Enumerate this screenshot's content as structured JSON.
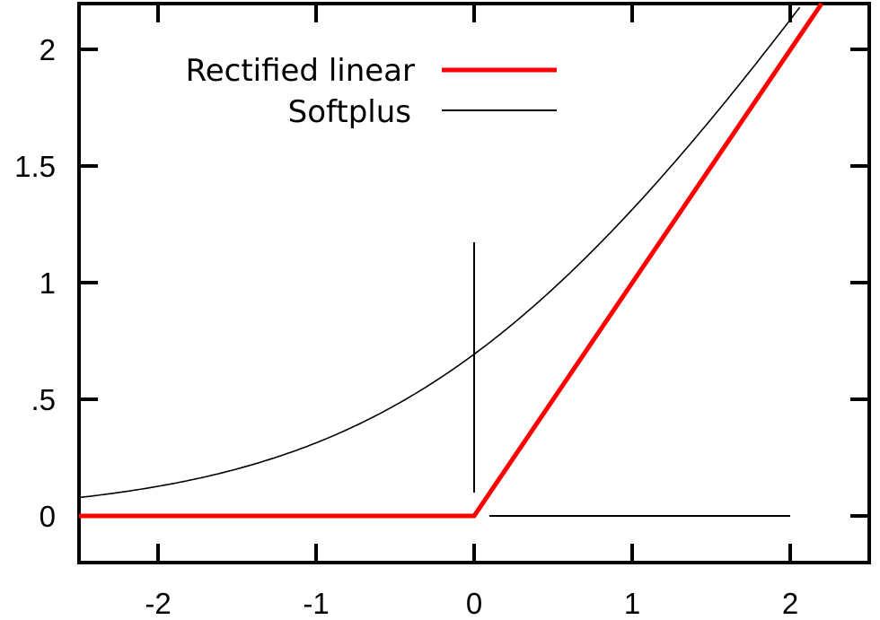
{
  "chart_data": {
    "type": "line",
    "title": "",
    "xlabel": "",
    "ylabel": "",
    "xlim": [
      -2.5,
      2.5
    ],
    "ylim": [
      -0.2,
      2.2
    ],
    "grid": false,
    "legend_position": "upper-left",
    "x_ticks": [
      -2,
      -1,
      0,
      1,
      2
    ],
    "x_tick_labels": [
      "-2",
      "-1",
      "0",
      "1",
      "2"
    ],
    "y_ticks": [
      0,
      0.5,
      1,
      1.5,
      2
    ],
    "y_tick_labels": [
      "0",
      ".5",
      "1",
      "1.5",
      "2"
    ],
    "series": [
      {
        "name": "Rectified linear",
        "color": "#ff0000",
        "line_width": 4,
        "function": "max(0, x)",
        "x": [
          -2.5,
          -2,
          -1,
          0,
          1,
          2,
          2.2
        ],
        "values": [
          0,
          0,
          0,
          0,
          1,
          2,
          2.2
        ]
      },
      {
        "name": "Softplus",
        "color": "#000000",
        "line_width": 1.5,
        "function": "ln(1 + e^x)",
        "x": [
          -2.5,
          -2,
          -1.5,
          -1,
          -0.5,
          0,
          0.5,
          1,
          1.5,
          2,
          2.2
        ],
        "values": [
          0.079,
          0.127,
          0.201,
          0.313,
          0.474,
          0.693,
          0.974,
          1.313,
          1.701,
          2.127,
          2.305
        ]
      }
    ],
    "annotations": [
      {
        "type": "vertical-line",
        "x": 0,
        "y_from": 0.1,
        "y_to": 1.18,
        "color": "#000000"
      },
      {
        "type": "horizontal-line",
        "y": 0,
        "x_from": 0.1,
        "x_to": 2.0,
        "color": "#000000"
      }
    ]
  },
  "legend": {
    "items": [
      {
        "label": "Rectified linear",
        "color": "#ff0000"
      },
      {
        "label": "Softplus",
        "color": "#000000"
      }
    ]
  },
  "axes": {
    "x_labels": [
      "-2",
      "-1",
      "0",
      "1",
      "2"
    ],
    "y_labels": [
      "0",
      ".5",
      "1",
      "1.5",
      "2"
    ]
  }
}
